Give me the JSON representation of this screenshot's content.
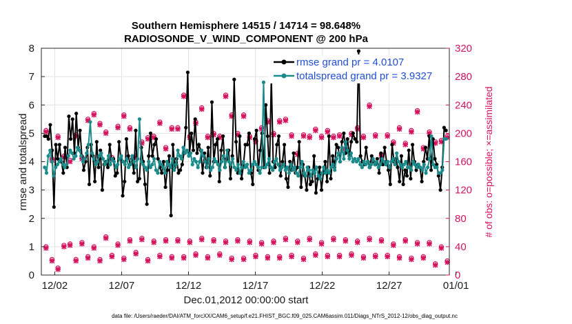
{
  "chart_data": {
    "type": "line",
    "title_line1": "Southern Hemisphere 14515 / 14714 = 98.648%",
    "title_line2": "RADIOSONDE_V_WIND_COMPONENT @ 200 hPa",
    "xlabel": "Dec.01,2012 00:00:00 start",
    "ylabel": "rmse and totalspread",
    "ylabel_right": "# of obs: o=possible; ×=assimilated",
    "xlim": [
      0,
      30.5
    ],
    "ylim": [
      0,
      8
    ],
    "ylim_right": [
      0,
      320
    ],
    "x_tick_labels": [
      "12/02",
      "12/07",
      "12/12",
      "12/17",
      "12/22",
      "12/27",
      "01/01"
    ],
    "x_tick_values": [
      1,
      6,
      11,
      16,
      21,
      26,
      31
    ],
    "y_ticks": [
      "0",
      "1",
      "2",
      "3",
      "4",
      "5",
      "6",
      "7",
      "8"
    ],
    "y_ticks_right": [
      "0",
      "40",
      "80",
      "120",
      "160",
      "200",
      "240",
      "280",
      "320"
    ],
    "grid": true,
    "legend_position": "top-right",
    "series": [
      {
        "name": "rmse",
        "legend": "rmse grand pr = 4.0107",
        "color": "#000000",
        "values": [
          4.9,
          4.9,
          4.8,
          5.3,
          4.4,
          2.4,
          4.6,
          4.1,
          4.6,
          4.0,
          3.6,
          4.5,
          3.8,
          5.6,
          4.8,
          5.5,
          4.3,
          5.7,
          4.5,
          5.1,
          4.2,
          3.7,
          4.0,
          4.5,
          3.2,
          4.6,
          4.2,
          3.3,
          4.7,
          3.8,
          4.4,
          3.0,
          3.9,
          4.0,
          3.8,
          4.6,
          4.1,
          4.1,
          3.5,
          3.6,
          4.7,
          4.1,
          2.8,
          3.3,
          4.8,
          4.2,
          3.9,
          4.1,
          3.6,
          5.1,
          3.3,
          3.4,
          4.5,
          4.0,
          3.2,
          2.5,
          4.2,
          5.0,
          4.2,
          4.6,
          4.8,
          4.1,
          3.8,
          3.6,
          4.0,
          3.1,
          3.7,
          4.2,
          2.1,
          4.6,
          3.8,
          4.1,
          3.6,
          3.7,
          3.9,
          4.3,
          5.2,
          7.15,
          4.3,
          5.0,
          4.4,
          5.5,
          4.3,
          4.6,
          4.4,
          3.6,
          4.3,
          3.8,
          4.5,
          3.5,
          6.1,
          4.0,
          4.6,
          4.8,
          3.3,
          4.4,
          4.9,
          3.8,
          4.1,
          4.4,
          3.4,
          4.2,
          6.9,
          4.7,
          3.6,
          4.9,
          3.4,
          3.9,
          4.6,
          4.6,
          5.0,
          3.6,
          3.2,
          4.8,
          5.1,
          3.7,
          4.4,
          5.0,
          3.8,
          6.0,
          4.9,
          3.6,
          7.0,
          4.0,
          3.8,
          4.6,
          4.9,
          3.5,
          4.0,
          4.6,
          3.4,
          3.1,
          4.0,
          3.7,
          4.3,
          3.6,
          3.8,
          4.7,
          3.1,
          3.9,
          3.5,
          3.0,
          3.8,
          3.2,
          3.3,
          4.2,
          2.9,
          3.4,
          3.8,
          3.0,
          3.6,
          4.0,
          3.3,
          4.9,
          3.4,
          4.2,
          3.8,
          4.6,
          4.5,
          4.0,
          4.7,
          5.0,
          4.3,
          4.8,
          4.2,
          4.7,
          5.0,
          4.8,
          4.7,
          7.9,
          4.2,
          4.0,
          3.9,
          4.5,
          4.0,
          3.8,
          4.2,
          4.0,
          3.9,
          4.1,
          3.6,
          4.3,
          3.9,
          4.5,
          4.0,
          3.7,
          3.2,
          4.6,
          4.0,
          4.1,
          3.8,
          3.3,
          4.2,
          3.2,
          3.7,
          3.5,
          4.4,
          3.4,
          4.6,
          4.0,
          3.7,
          3.9,
          3.8,
          3.3,
          4.0,
          4.5,
          4.1,
          4.9,
          3.7,
          4.8,
          4.1,
          3.9,
          3.5,
          3.0,
          3.8,
          5.2,
          5.1
        ]
      },
      {
        "name": "totalspread",
        "legend": "totalspread grand pr = 3.9327",
        "color": "#1b8a8a",
        "values": [
          3.8,
          3.6,
          4.2,
          4.4,
          4.0,
          3.5,
          3.8,
          3.9,
          4.0,
          4.1,
          3.9,
          3.8,
          3.9,
          4.2,
          4.4,
          4.3,
          4.1,
          4.2,
          4.5,
          4.4,
          4.2,
          4.0,
          4.1,
          4.3,
          4.6,
          5.4,
          4.3,
          4.1,
          3.9,
          4.0,
          4.2,
          4.3,
          4.1,
          3.9,
          4.0,
          4.2,
          3.9,
          4.1,
          4.0,
          3.8,
          3.9,
          4.1,
          4.2,
          4.0,
          3.9,
          4.1,
          3.8,
          3.9,
          4.2,
          4.0,
          3.8,
          4.1,
          5.5,
          4.0,
          3.9,
          3.8,
          3.7,
          4.0,
          3.8,
          3.9,
          4.1,
          3.7,
          3.6,
          4.0,
          3.9,
          3.8,
          3.6,
          4.0,
          3.9,
          3.8,
          4.1,
          3.7,
          3.9,
          4.4,
          4.2,
          4.1,
          4.5,
          4.3,
          4.4,
          4.2,
          4.3,
          3.9,
          4.1,
          4.0,
          3.8,
          4.0,
          4.4,
          4.2,
          4.0,
          3.8,
          4.1,
          3.7,
          3.8,
          4.1,
          4.0,
          3.9,
          3.7,
          4.0,
          4.2,
          3.8,
          4.4,
          4.0,
          3.9,
          4.1,
          3.8,
          3.7,
          3.9,
          3.6,
          3.8,
          4.0,
          3.8,
          3.9,
          3.6,
          3.7,
          3.9,
          4.0,
          3.9,
          3.8,
          3.6,
          3.8,
          6.8,
          3.8,
          3.9,
          4.1,
          3.8,
          3.7,
          4.0,
          4.1,
          3.9,
          3.7,
          3.8,
          3.9,
          3.7,
          3.8,
          3.6,
          3.9,
          3.7,
          3.8,
          3.6,
          3.5,
          3.8,
          4.0,
          3.6,
          3.5,
          3.8,
          3.7,
          3.5,
          3.7,
          3.6,
          3.8,
          3.5,
          3.4,
          3.6,
          3.8,
          3.6,
          3.7,
          3.6,
          3.8,
          3.9,
          3.7,
          4.1,
          4.3,
          4.0,
          4.5,
          4.1,
          4.7,
          4.4,
          4.1,
          4.3,
          4.0,
          4.1,
          4.0,
          4.1,
          3.9,
          3.8,
          4.0,
          3.9,
          4.0,
          3.8,
          3.9,
          4.1,
          3.9,
          4.0,
          3.8,
          3.9,
          4.1,
          4.0,
          3.9,
          4.0,
          3.8,
          4.0,
          4.1,
          3.9,
          4.3,
          4.0,
          3.9,
          3.8,
          3.9,
          4.0,
          3.8,
          3.8,
          3.7,
          4.0,
          3.9,
          3.8,
          3.9,
          3.8,
          3.7,
          3.9,
          3.6,
          3.8,
          4.1,
          4.9,
          3.9,
          3.8,
          3.8,
          3.6,
          3.6,
          3.7,
          4.8,
          4.8
        ]
      },
      {
        "name": "obs_possible",
        "color": "#d6125f",
        "marker": "o",
        "axis": "right",
        "values": [
          204,
          164,
          196,
          168,
          162,
          198,
          166,
          220,
          228,
          214,
          202,
          166,
          210,
          226,
          208,
          168,
          188,
          194,
          196,
          216,
          180,
          208,
          208,
          254,
          196,
          216,
          236,
          196,
          200,
          196,
          254,
          226,
          200,
          226,
          196,
          190,
          208,
          218,
          200,
          218,
          220,
          198,
          172,
          198,
          196,
          206,
          196,
          204,
          196,
          198,
          178,
          200,
          208,
          196,
          240,
          198,
          170,
          198,
          188,
          208,
          186,
          204,
          232,
          180,
          202,
          188,
          190,
          196
        ]
      },
      {
        "name": "obs_assimilated",
        "color": "#d6125f",
        "marker": "x",
        "axis": "right",
        "values": [
          202,
          162,
          194,
          166,
          160,
          196,
          164,
          218,
          226,
          212,
          200,
          164,
          208,
          224,
          206,
          166,
          186,
          192,
          194,
          214,
          178,
          206,
          206,
          252,
          194,
          214,
          234,
          194,
          198,
          194,
          252,
          224,
          198,
          224,
          194,
          188,
          206,
          216,
          198,
          216,
          218,
          196,
          170,
          196,
          194,
          204,
          194,
          202,
          194,
          196,
          176,
          198,
          206,
          194,
          238,
          196,
          168,
          196,
          186,
          206,
          184,
          202,
          230,
          178,
          200,
          186,
          188,
          194
        ]
      },
      {
        "name": "obs_possible_00z",
        "color": "#d6125f",
        "marker": "o",
        "axis": "right",
        "values": [
          40,
          22,
          10,
          42,
          44,
          22,
          46,
          26,
          40,
          22,
          54,
          28,
          44,
          24,
          50,
          32,
          52,
          22,
          48,
          28,
          50,
          26,
          50,
          26,
          48,
          30,
          52,
          26,
          50,
          30,
          48,
          24,
          50,
          24,
          48,
          28,
          46,
          26,
          48,
          26,
          52,
          28,
          48,
          24,
          52,
          30,
          46,
          28,
          52,
          28,
          50,
          30,
          48,
          26,
          52,
          28,
          50,
          28,
          44,
          26,
          50,
          24,
          46,
          26,
          46,
          16,
          40,
          20
        ]
      },
      {
        "name": "obs_assimilated_00z",
        "color": "#d6125f",
        "marker": "x",
        "axis": "right",
        "values": [
          38,
          20,
          8,
          40,
          42,
          20,
          44,
          24,
          38,
          20,
          52,
          26,
          42,
          22,
          48,
          30,
          50,
          20,
          46,
          26,
          48,
          24,
          48,
          24,
          46,
          28,
          50,
          24,
          48,
          28,
          46,
          22,
          48,
          22,
          46,
          26,
          44,
          24,
          46,
          24,
          50,
          26,
          46,
          22,
          50,
          28,
          44,
          26,
          50,
          26,
          48,
          28,
          46,
          24,
          50,
          26,
          48,
          26,
          42,
          24,
          48,
          22,
          44,
          24,
          44,
          14,
          38,
          18
        ]
      }
    ],
    "footer": "data file: /Users/raeder/DAI/ATM_forcXX/CAM6_setup/f.e21.FHIST_BGC.f09_025.CAM6assim.011/Diags_NTrS_2012-12/obs_diag_output.nc"
  }
}
